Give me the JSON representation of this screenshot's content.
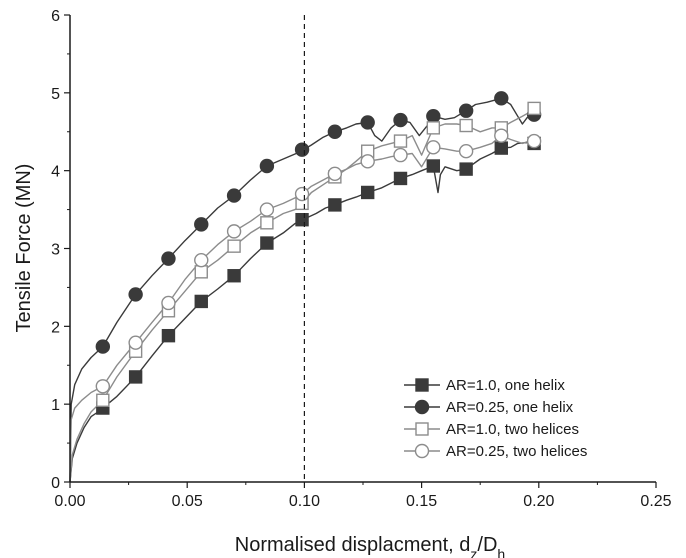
{
  "chart_data": {
    "type": "line",
    "title": "",
    "xlabel": "Normalised displacment, d",
    "xlabel_sub1": "z",
    "xlabel_mid": "/D",
    "xlabel_sub2": "h",
    "ylabel": "Tensile Force (MN)",
    "xlim": [
      0,
      0.25
    ],
    "ylim": [
      0,
      6
    ],
    "xticks": [
      "0.00",
      "0.05",
      "0.10",
      "0.15",
      "0.20",
      "0.25"
    ],
    "yticks": [
      "0",
      "1",
      "2",
      "3",
      "4",
      "5",
      "6"
    ],
    "grid": false,
    "legend_position": "bottom-right",
    "reference_line": {
      "x": 0.1,
      "style": "dashed"
    },
    "colors": {
      "dark": "#3a3a3a",
      "light": "#8c8c8c"
    },
    "series": [
      {
        "name": "AR=1.0, one helix",
        "marker": "square-filled",
        "color": "#3a3a3a",
        "x": [
          0,
          0.001,
          0.003,
          0.006,
          0.009,
          0.012,
          0.014,
          0.02,
          0.028,
          0.035,
          0.042,
          0.049,
          0.056,
          0.063,
          0.07,
          0.077,
          0.084,
          0.091,
          0.096,
          0.099,
          0.1,
          0.105,
          0.109,
          0.113,
          0.118,
          0.122,
          0.127,
          0.133,
          0.137,
          0.141,
          0.146,
          0.15,
          0.155,
          0.157,
          0.158,
          0.16,
          0.165,
          0.169,
          0.175,
          0.18,
          0.184,
          0.188,
          0.191,
          0.195,
          0.198
        ],
        "y": [
          0,
          0.3,
          0.5,
          0.7,
          0.84,
          0.9,
          0.95,
          1.1,
          1.35,
          1.62,
          1.88,
          2.1,
          2.32,
          2.48,
          2.65,
          2.87,
          3.07,
          3.2,
          3.32,
          3.37,
          3.38,
          3.45,
          3.52,
          3.56,
          3.62,
          3.66,
          3.72,
          3.78,
          3.84,
          3.9,
          3.95,
          4.0,
          4.06,
          3.72,
          3.95,
          4.05,
          4.0,
          4.02,
          4.15,
          4.22,
          4.29,
          4.3,
          4.35,
          4.36,
          4.35
        ],
        "markers_x": [
          0.014,
          0.028,
          0.042,
          0.056,
          0.07,
          0.084,
          0.099,
          0.113,
          0.127,
          0.141,
          0.155,
          0.169,
          0.184,
          0.198
        ],
        "markers_y": [
          0.95,
          1.35,
          1.88,
          2.32,
          2.65,
          3.07,
          3.37,
          3.56,
          3.72,
          3.9,
          4.06,
          4.02,
          4.29,
          4.35
        ]
      },
      {
        "name": "AR=0.25, one helix",
        "marker": "circle-filled",
        "color": "#3a3a3a",
        "x": [
          0,
          0.0005,
          0.002,
          0.005,
          0.009,
          0.014,
          0.02,
          0.028,
          0.035,
          0.042,
          0.049,
          0.056,
          0.063,
          0.07,
          0.077,
          0.084,
          0.091,
          0.098,
          0.103,
          0.108,
          0.113,
          0.118,
          0.122,
          0.127,
          0.13,
          0.133,
          0.137,
          0.141,
          0.145,
          0.149,
          0.153,
          0.155,
          0.16,
          0.164,
          0.169,
          0.173,
          0.178,
          0.184,
          0.188,
          0.191,
          0.193,
          0.195,
          0.198
        ],
        "y": [
          0,
          1.0,
          1.25,
          1.45,
          1.6,
          1.74,
          2.05,
          2.41,
          2.65,
          2.87,
          3.1,
          3.31,
          3.52,
          3.68,
          3.88,
          4.06,
          4.15,
          4.24,
          4.33,
          4.43,
          4.5,
          4.55,
          4.6,
          4.62,
          4.45,
          4.38,
          4.55,
          4.65,
          4.62,
          4.45,
          4.6,
          4.7,
          4.66,
          4.68,
          4.77,
          4.85,
          4.88,
          4.93,
          4.85,
          4.7,
          4.6,
          4.68,
          4.72
        ],
        "markers_x": [
          0.014,
          0.028,
          0.042,
          0.056,
          0.07,
          0.084,
          0.099,
          0.113,
          0.127,
          0.141,
          0.155,
          0.169,
          0.184,
          0.198
        ],
        "markers_y": [
          1.74,
          2.41,
          2.87,
          3.31,
          3.68,
          4.06,
          4.27,
          4.5,
          4.62,
          4.65,
          4.7,
          4.77,
          4.93,
          4.72
        ]
      },
      {
        "name": "AR=1.0, two helices",
        "marker": "square-open",
        "color": "#8c8c8c",
        "x": [
          0,
          0.001,
          0.003,
          0.006,
          0.009,
          0.014,
          0.02,
          0.028,
          0.035,
          0.042,
          0.049,
          0.056,
          0.063,
          0.07,
          0.077,
          0.084,
          0.091,
          0.096,
          0.099,
          0.103,
          0.108,
          0.113,
          0.118,
          0.122,
          0.127,
          0.133,
          0.137,
          0.141,
          0.146,
          0.15,
          0.155,
          0.16,
          0.165,
          0.169,
          0.175,
          0.18,
          0.184,
          0.188,
          0.193,
          0.196,
          0.198
        ],
        "y": [
          0,
          0.35,
          0.55,
          0.75,
          0.9,
          1.05,
          1.35,
          1.68,
          1.95,
          2.2,
          2.45,
          2.7,
          2.85,
          3.03,
          3.2,
          3.33,
          3.45,
          3.5,
          3.58,
          3.72,
          3.82,
          3.92,
          4.02,
          4.12,
          4.25,
          4.32,
          4.35,
          4.38,
          4.45,
          4.2,
          4.55,
          4.6,
          4.6,
          4.58,
          4.5,
          4.55,
          4.55,
          4.62,
          4.7,
          4.75,
          4.8
        ],
        "markers_x": [
          0.014,
          0.028,
          0.042,
          0.056,
          0.07,
          0.084,
          0.099,
          0.113,
          0.127,
          0.141,
          0.155,
          0.169,
          0.184,
          0.198
        ],
        "markers_y": [
          1.05,
          1.68,
          2.2,
          2.7,
          3.03,
          3.33,
          3.58,
          3.92,
          4.25,
          4.38,
          4.55,
          4.58,
          4.55,
          4.8
        ]
      },
      {
        "name": "AR=0.25, two helices",
        "marker": "circle-open",
        "color": "#8c8c8c",
        "x": [
          0,
          0.0005,
          0.002,
          0.005,
          0.009,
          0.014,
          0.02,
          0.028,
          0.035,
          0.042,
          0.049,
          0.056,
          0.063,
          0.07,
          0.077,
          0.084,
          0.091,
          0.096,
          0.099,
          0.103,
          0.108,
          0.113,
          0.118,
          0.122,
          0.127,
          0.133,
          0.137,
          0.141,
          0.146,
          0.15,
          0.155,
          0.16,
          0.165,
          0.169,
          0.175,
          0.18,
          0.184,
          0.188,
          0.193,
          0.196,
          0.198
        ],
        "y": [
          0,
          0.8,
          0.95,
          1.05,
          1.15,
          1.23,
          1.5,
          1.79,
          2.05,
          2.3,
          2.6,
          2.85,
          3.05,
          3.22,
          3.35,
          3.5,
          3.58,
          3.65,
          3.7,
          3.8,
          3.88,
          3.96,
          4.02,
          4.08,
          4.12,
          4.15,
          4.18,
          4.2,
          4.22,
          4.05,
          4.3,
          4.28,
          4.25,
          4.25,
          4.3,
          4.35,
          4.45,
          4.4,
          4.35,
          4.38,
          4.38
        ],
        "markers_x": [
          0.014,
          0.028,
          0.042,
          0.056,
          0.07,
          0.084,
          0.099,
          0.113,
          0.127,
          0.141,
          0.155,
          0.169,
          0.184,
          0.198
        ],
        "markers_y": [
          1.23,
          1.79,
          2.3,
          2.85,
          3.22,
          3.5,
          3.7,
          3.96,
          4.12,
          4.2,
          4.3,
          4.25,
          4.45,
          4.38
        ]
      }
    ]
  }
}
